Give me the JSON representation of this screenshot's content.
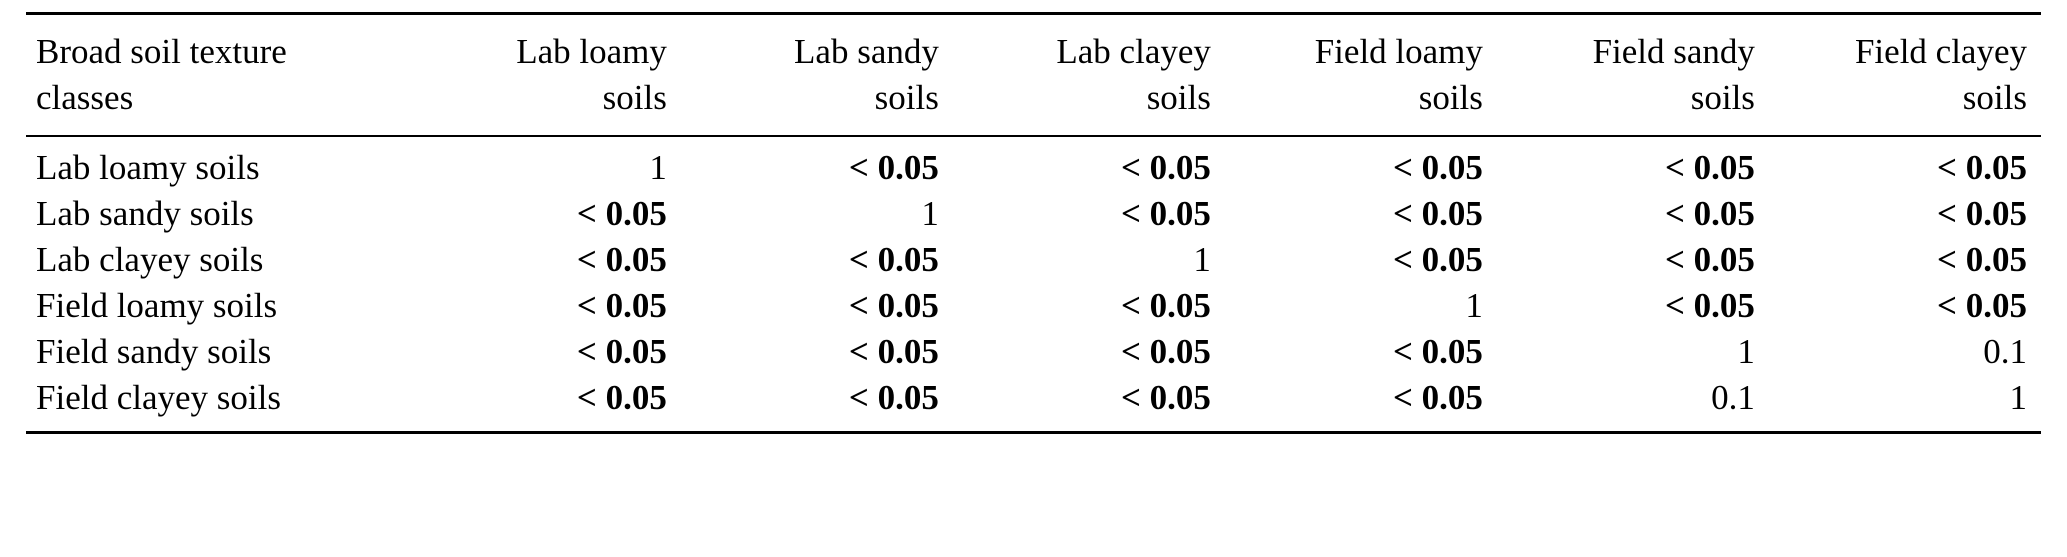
{
  "table": {
    "header": {
      "label_line1": "Broad soil texture",
      "label_line2": "classes",
      "columns": [
        {
          "line1": "Lab loamy",
          "line2": "soils"
        },
        {
          "line1": "Lab sandy",
          "line2": "soils"
        },
        {
          "line1": "Lab clayey",
          "line2": "soils"
        },
        {
          "line1": "Field loamy",
          "line2": "soils"
        },
        {
          "line1": "Field sandy",
          "line2": "soils"
        },
        {
          "line1": "Field clayey",
          "line2": "soils"
        }
      ]
    },
    "rows": [
      {
        "label": "Lab loamy soils",
        "values": [
          "1",
          "< 0.05",
          "< 0.05",
          "< 0.05",
          "< 0.05",
          "< 0.05"
        ]
      },
      {
        "label": "Lab sandy soils",
        "values": [
          "< 0.05",
          "1",
          "< 0.05",
          "< 0.05",
          "< 0.05",
          "< 0.05"
        ]
      },
      {
        "label": "Lab clayey soils",
        "values": [
          "< 0.05",
          "< 0.05",
          "1",
          "< 0.05",
          "< 0.05",
          "< 0.05"
        ]
      },
      {
        "label": "Field loamy soils",
        "values": [
          "< 0.05",
          "< 0.05",
          "< 0.05",
          "1",
          "< 0.05",
          "< 0.05"
        ]
      },
      {
        "label": "Field sandy soils",
        "values": [
          "< 0.05",
          "< 0.05",
          "< 0.05",
          "< 0.05",
          "1",
          "0.1"
        ]
      },
      {
        "label": "Field clayey soils",
        "values": [
          "< 0.05",
          "< 0.05",
          "< 0.05",
          "< 0.05",
          "0.1",
          "1"
        ]
      }
    ]
  }
}
